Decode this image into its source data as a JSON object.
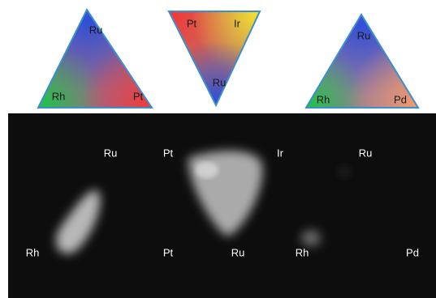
{
  "triangles": [
    {
      "top": "Ru",
      "left": "Rh",
      "right": "Pt"
    },
    {
      "left": "Pt",
      "right": "Ir",
      "bottom": "Ru"
    },
    {
      "top": "Ru",
      "left": "Rh",
      "right": "Pd"
    }
  ],
  "image_labels": [
    "Ru",
    "Pt",
    "Ir",
    "Ru",
    "Rh",
    "Pt",
    "Ru",
    "Rh",
    "Pd"
  ]
}
